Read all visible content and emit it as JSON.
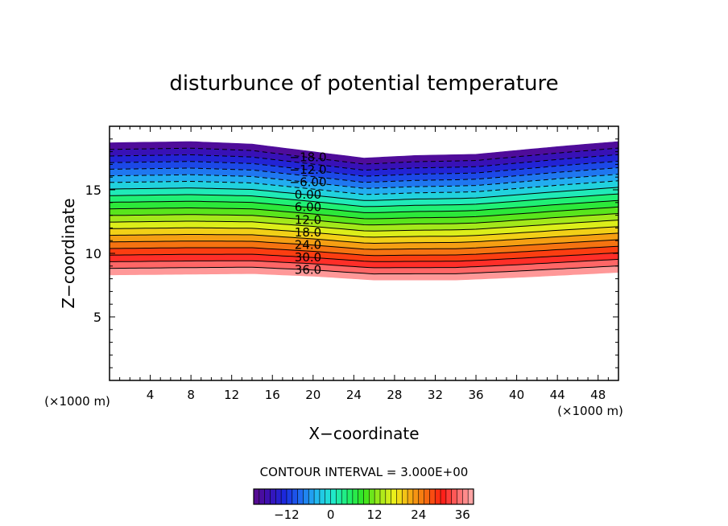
{
  "chart_data": {
    "type": "contour",
    "title": "disturbunce of potential temperature",
    "xlabel": "X−coordinate",
    "ylabel": "Z−coordinate",
    "x_unit_left": "(×1000 m)",
    "x_unit_right": "(×1000 m)",
    "xlim": [
      0,
      50
    ],
    "ylim": [
      0,
      20
    ],
    "x_ticks": [
      4,
      8,
      12,
      16,
      20,
      24,
      28,
      32,
      36,
      40,
      44,
      48
    ],
    "y_ticks": [
      5,
      10,
      15
    ],
    "contour_interval_text": "CONTOUR INTERVAL = 3.000E+00",
    "contour_levels": [
      -18,
      -15,
      -12,
      -9,
      -6,
      -3,
      0,
      3,
      6,
      9,
      12,
      15,
      18,
      21,
      24,
      27,
      30,
      33,
      36,
      39
    ],
    "negative_contours_dashed": true,
    "contour_labels": [
      "−18.0",
      "−12.0",
      "−6.00",
      "0.00",
      "6.00",
      "12.0",
      "18.0",
      "24.0",
      "30.0",
      "36.0"
    ],
    "field_top_z": [
      {
        "x": 0,
        "z": 18.7
      },
      {
        "x": 8,
        "z": 18.8
      },
      {
        "x": 14,
        "z": 18.6
      },
      {
        "x": 20,
        "z": 18.0
      },
      {
        "x": 25,
        "z": 17.5
      },
      {
        "x": 30,
        "z": 17.7
      },
      {
        "x": 36,
        "z": 17.8
      },
      {
        "x": 44,
        "z": 18.4
      },
      {
        "x": 50,
        "z": 18.8
      }
    ],
    "field_bottom_z": [
      {
        "x": 0,
        "z": 8.3
      },
      {
        "x": 14,
        "z": 8.4
      },
      {
        "x": 20,
        "z": 8.2
      },
      {
        "x": 26,
        "z": 7.9
      },
      {
        "x": 34,
        "z": 7.9
      },
      {
        "x": 40,
        "z": 8.1
      },
      {
        "x": 50,
        "z": 8.5
      }
    ],
    "colorbar": {
      "tick_labels": [
        "−12",
        "0",
        "12",
        "24",
        "36"
      ],
      "tick_values": [
        -12,
        0,
        12,
        24,
        36
      ],
      "range": [
        -21,
        39
      ]
    },
    "colormap": [
      "#5a0a8c",
      "#3a10b4",
      "#1a2ae0",
      "#1f6cf0",
      "#22b8f0",
      "#20e8d0",
      "#20f070",
      "#33e41d",
      "#9fe81a",
      "#f0f01a",
      "#f5a814",
      "#f56a10",
      "#ff1a12",
      "#ff6a6a",
      "#ffb0b0"
    ]
  }
}
